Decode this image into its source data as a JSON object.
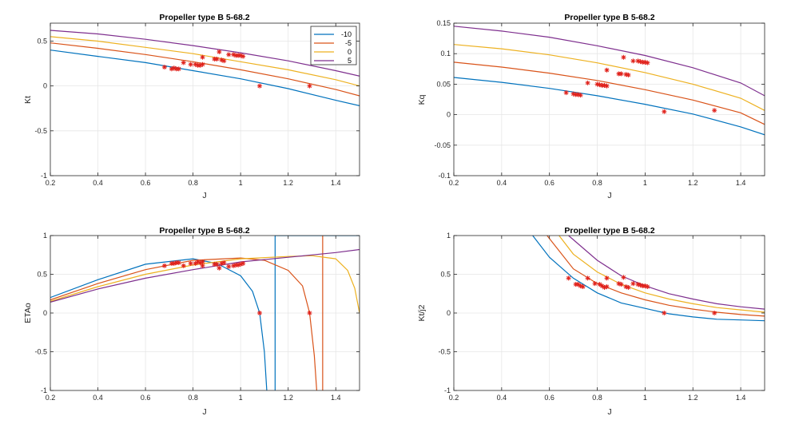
{
  "colors": {
    "series": [
      "#0072BD",
      "#D95319",
      "#EDB120",
      "#7E2F8E"
    ],
    "marker": "#E0211B",
    "axis": "#262626",
    "grid": "#e6e6e6"
  },
  "legend": {
    "placement": "top-right of first panel",
    "entries": [
      "-10",
      "-5",
      "0",
      "5"
    ]
  },
  "chart_data": [
    {
      "type": "line",
      "title": "Propeller type B  5-68.2",
      "xlabel": "J",
      "ylabel": "Kt",
      "xlim": [
        0.2,
        1.5
      ],
      "ylim": [
        -1,
        0.7
      ],
      "xticks": [
        0.2,
        0.4,
        0.6,
        0.8,
        1,
        1.2,
        1.4
      ],
      "xtick_labels": [
        "0.2",
        "0.4",
        "0.6",
        "0.8",
        "1",
        "1.2",
        "1.4"
      ],
      "yticks": [
        -1,
        -0.5,
        0,
        0.5
      ],
      "ytick_labels": [
        "-1",
        "-0.5",
        "0",
        "0.5"
      ],
      "grid": true,
      "series": [
        {
          "name": "-10",
          "x": [
            0.2,
            0.4,
            0.6,
            0.8,
            1.0,
            1.2,
            1.4,
            1.5
          ],
          "y": [
            0.4,
            0.33,
            0.26,
            0.17,
            0.08,
            -0.03,
            -0.16,
            -0.22
          ]
        },
        {
          "name": "-5",
          "x": [
            0.2,
            0.4,
            0.6,
            0.8,
            1.0,
            1.2,
            1.4,
            1.5
          ],
          "y": [
            0.48,
            0.42,
            0.35,
            0.27,
            0.18,
            0.08,
            -0.04,
            -0.11
          ]
        },
        {
          "name": "0",
          "x": [
            0.2,
            0.4,
            0.6,
            0.8,
            1.0,
            1.2,
            1.4,
            1.5
          ],
          "y": [
            0.55,
            0.5,
            0.43,
            0.36,
            0.27,
            0.18,
            0.07,
            0.0
          ]
        },
        {
          "name": "5",
          "x": [
            0.2,
            0.4,
            0.6,
            0.8,
            1.0,
            1.2,
            1.4,
            1.5
          ],
          "y": [
            0.62,
            0.58,
            0.52,
            0.45,
            0.37,
            0.28,
            0.17,
            0.11
          ]
        }
      ],
      "markers": {
        "x": [
          0.68,
          0.71,
          0.72,
          0.73,
          0.74,
          0.76,
          0.79,
          0.81,
          0.82,
          0.83,
          0.84,
          0.84,
          0.89,
          0.9,
          0.91,
          0.92,
          0.93,
          0.95,
          0.97,
          0.98,
          0.99,
          1.0,
          1.01,
          1.08,
          1.29
        ],
        "y": [
          0.21,
          0.19,
          0.2,
          0.19,
          0.19,
          0.26,
          0.24,
          0.24,
          0.23,
          0.23,
          0.32,
          0.24,
          0.3,
          0.3,
          0.38,
          0.29,
          0.28,
          0.35,
          0.35,
          0.34,
          0.34,
          0.34,
          0.33,
          0.0,
          0.0
        ]
      }
    },
    {
      "type": "line",
      "title": "Propeller type B  5-68.2",
      "xlabel": "J",
      "ylabel": "Kq",
      "xlim": [
        0.2,
        1.5
      ],
      "ylim": [
        -0.1,
        0.15
      ],
      "xticks": [
        0.2,
        0.4,
        0.6,
        0.8,
        1,
        1.2,
        1.4
      ],
      "xtick_labels": [
        "0.2",
        "0.4",
        "0.6",
        "0.8",
        "1",
        "1.2",
        "1.4"
      ],
      "yticks": [
        -0.1,
        -0.05,
        0,
        0.05,
        0.1,
        0.15
      ],
      "ytick_labels": [
        "-0.1",
        "-0.05",
        "0",
        "0.05",
        "0.1",
        "0.15"
      ],
      "grid": true,
      "series": [
        {
          "name": "-10",
          "x": [
            0.2,
            0.4,
            0.6,
            0.8,
            1.0,
            1.2,
            1.4,
            1.5
          ],
          "y": [
            0.061,
            0.053,
            0.043,
            0.031,
            0.017,
            0.001,
            -0.02,
            -0.033
          ]
        },
        {
          "name": "-5",
          "x": [
            0.2,
            0.4,
            0.6,
            0.8,
            1.0,
            1.2,
            1.4,
            1.5
          ],
          "y": [
            0.086,
            0.078,
            0.068,
            0.056,
            0.041,
            0.024,
            0.003,
            -0.016
          ]
        },
        {
          "name": "0",
          "x": [
            0.2,
            0.4,
            0.6,
            0.8,
            1.0,
            1.2,
            1.4,
            1.5
          ],
          "y": [
            0.115,
            0.108,
            0.098,
            0.085,
            0.069,
            0.05,
            0.027,
            0.007
          ]
        },
        {
          "name": "5",
          "x": [
            0.2,
            0.4,
            0.6,
            0.8,
            1.0,
            1.2,
            1.4,
            1.5
          ],
          "y": [
            0.145,
            0.137,
            0.127,
            0.113,
            0.097,
            0.077,
            0.052,
            0.031
          ]
        }
      ],
      "markers": {
        "x": [
          0.67,
          0.7,
          0.71,
          0.72,
          0.73,
          0.76,
          0.8,
          0.81,
          0.82,
          0.83,
          0.84,
          0.84,
          0.89,
          0.9,
          0.91,
          0.92,
          0.93,
          0.95,
          0.97,
          0.98,
          0.99,
          1.0,
          1.01,
          1.08,
          1.29
        ],
        "y": [
          0.036,
          0.034,
          0.033,
          0.033,
          0.032,
          0.052,
          0.05,
          0.049,
          0.048,
          0.048,
          0.073,
          0.047,
          0.067,
          0.067,
          0.094,
          0.066,
          0.065,
          0.088,
          0.088,
          0.087,
          0.086,
          0.086,
          0.085,
          0.005,
          0.007
        ]
      }
    },
    {
      "type": "line",
      "title": "Propeller type B  5-68.2",
      "xlabel": "J",
      "ylabel": "ETAo",
      "xlim": [
        0.2,
        1.5
      ],
      "ylim": [
        -1,
        1
      ],
      "xticks": [
        0.2,
        0.4,
        0.6,
        0.8,
        1,
        1.2,
        1.4
      ],
      "xtick_labels": [
        "0.2",
        "0.4",
        "0.6",
        "0.8",
        "1",
        "1.2",
        "1.4"
      ],
      "yticks": [
        -1,
        -0.5,
        0,
        0.5,
        1
      ],
      "ytick_labels": [
        "-1",
        "-0.5",
        "0",
        "0.5",
        "1"
      ],
      "grid": true,
      "series": [
        {
          "name": "-10",
          "x": [
            0.2,
            0.4,
            0.6,
            0.8,
            0.9,
            1.0,
            1.05,
            1.08,
            1.1,
            1.11
          ],
          "y": [
            0.2,
            0.43,
            0.63,
            0.7,
            0.64,
            0.48,
            0.28,
            0.0,
            -0.5,
            -1.0
          ],
          "asymptote_x": 1.145,
          "tail": {
            "x": [
              1.146,
              1.16,
              1.2,
              1.3,
              1.4,
              1.5
            ],
            "y": [
              1.0,
              1.0,
              1.0,
              1.0,
              1.0,
              1.0
            ]
          }
        },
        {
          "name": "-5",
          "x": [
            0.2,
            0.4,
            0.6,
            0.8,
            1.0,
            1.1,
            1.2,
            1.26,
            1.29,
            1.31,
            1.32
          ],
          "y": [
            0.17,
            0.38,
            0.56,
            0.68,
            0.71,
            0.68,
            0.55,
            0.35,
            0.0,
            -0.55,
            -1.0
          ],
          "asymptote_x": 1.345
        },
        {
          "name": "0",
          "x": [
            0.2,
            0.4,
            0.6,
            0.8,
            1.0,
            1.2,
            1.3,
            1.4,
            1.45,
            1.48,
            1.5
          ],
          "y": [
            0.15,
            0.34,
            0.5,
            0.62,
            0.7,
            0.73,
            0.74,
            0.7,
            0.55,
            0.32,
            0.0
          ]
        },
        {
          "name": "5",
          "x": [
            0.2,
            0.4,
            0.6,
            0.8,
            1.0,
            1.2,
            1.4,
            1.5
          ],
          "y": [
            0.14,
            0.31,
            0.45,
            0.56,
            0.66,
            0.72,
            0.78,
            0.82
          ]
        }
      ],
      "markers": {
        "x": [
          0.68,
          0.71,
          0.72,
          0.73,
          0.74,
          0.76,
          0.79,
          0.81,
          0.82,
          0.83,
          0.84,
          0.84,
          0.89,
          0.9,
          0.91,
          0.92,
          0.93,
          0.95,
          0.97,
          0.98,
          0.99,
          1.0,
          1.01,
          1.08,
          1.29
        ],
        "y": [
          0.61,
          0.64,
          0.64,
          0.65,
          0.65,
          0.61,
          0.64,
          0.64,
          0.66,
          0.65,
          0.61,
          0.66,
          0.63,
          0.63,
          0.58,
          0.64,
          0.65,
          0.6,
          0.61,
          0.62,
          0.62,
          0.63,
          0.64,
          0.0,
          0.0
        ]
      }
    },
    {
      "type": "line",
      "title": "Propeller type B  5-68.2",
      "xlabel": "J",
      "ylabel": "Kt/j2",
      "xlim": [
        0.2,
        1.5
      ],
      "ylim": [
        -1,
        1
      ],
      "xticks": [
        0.2,
        0.4,
        0.6,
        0.8,
        1,
        1.2,
        1.4
      ],
      "xtick_labels": [
        "0.2",
        "0.4",
        "0.6",
        "0.8",
        "1",
        "1.2",
        "1.4"
      ],
      "yticks": [
        -1,
        -0.5,
        0,
        0.5,
        1
      ],
      "ytick_labels": [
        "-1",
        "-0.5",
        "0",
        "0.5",
        "1"
      ],
      "grid": true,
      "series": [
        {
          "name": "-10",
          "x": [
            0.53,
            0.6,
            0.7,
            0.8,
            0.9,
            1.0,
            1.1,
            1.2,
            1.3,
            1.4,
            1.5
          ],
          "y": [
            1.0,
            0.72,
            0.45,
            0.26,
            0.13,
            0.06,
            -0.01,
            -0.05,
            -0.08,
            -0.09,
            -0.1
          ]
        },
        {
          "name": "-5",
          "x": [
            0.59,
            0.7,
            0.8,
            0.9,
            1.0,
            1.1,
            1.2,
            1.3,
            1.4,
            1.5
          ],
          "y": [
            1.0,
            0.57,
            0.38,
            0.26,
            0.17,
            0.1,
            0.05,
            0.01,
            -0.02,
            -0.04
          ]
        },
        {
          "name": "0",
          "x": [
            0.64,
            0.7,
            0.8,
            0.9,
            1.0,
            1.1,
            1.2,
            1.3,
            1.4,
            1.5
          ],
          "y": [
            1.0,
            0.76,
            0.53,
            0.37,
            0.26,
            0.18,
            0.12,
            0.07,
            0.04,
            0.01
          ]
        },
        {
          "name": "5",
          "x": [
            0.68,
            0.8,
            0.9,
            1.0,
            1.1,
            1.2,
            1.3,
            1.4,
            1.5
          ],
          "y": [
            1.0,
            0.68,
            0.48,
            0.35,
            0.25,
            0.18,
            0.12,
            0.08,
            0.05
          ]
        }
      ],
      "markers": {
        "x": [
          0.68,
          0.71,
          0.72,
          0.73,
          0.74,
          0.76,
          0.79,
          0.81,
          0.82,
          0.83,
          0.84,
          0.84,
          0.89,
          0.9,
          0.91,
          0.92,
          0.93,
          0.95,
          0.97,
          0.98,
          0.99,
          1.0,
          1.01,
          1.08,
          1.29
        ],
        "y": [
          0.45,
          0.37,
          0.37,
          0.35,
          0.34,
          0.45,
          0.38,
          0.37,
          0.35,
          0.33,
          0.45,
          0.34,
          0.38,
          0.37,
          0.46,
          0.34,
          0.33,
          0.38,
          0.37,
          0.36,
          0.35,
          0.35,
          0.34,
          0.0,
          0.0
        ]
      }
    }
  ]
}
